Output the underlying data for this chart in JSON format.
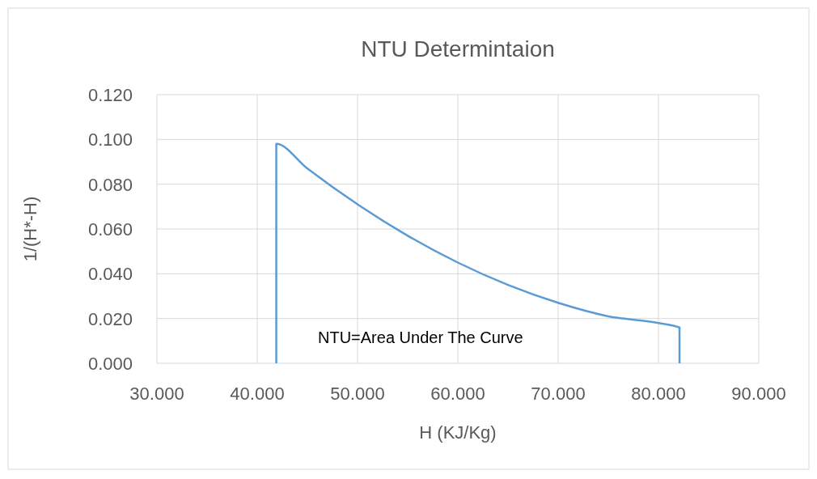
{
  "chart_data": {
    "type": "line",
    "title": "NTU Determintaion",
    "xlabel": "H (KJ/Kg)",
    "ylabel": "1/(H*-H)",
    "x": [
      41.9,
      41.9,
      45,
      50,
      55,
      60,
      65,
      70,
      75,
      80,
      82.1,
      82.1
    ],
    "series": [
      {
        "color": "#5b9bd5",
        "values": [
          0,
          0.098,
          0.087,
          0.071,
          0.057,
          0.045,
          0.035,
          0.027,
          0.021,
          0.018,
          0.016,
          0
        ]
      }
    ],
    "xlim": [
      30,
      90
    ],
    "xticks": [
      {
        "value": 30,
        "label": "30.000"
      },
      {
        "value": 40,
        "label": "40.000"
      },
      {
        "value": 50,
        "label": "50.000"
      },
      {
        "value": 60,
        "label": "60.000"
      },
      {
        "value": 70,
        "label": "70.000"
      },
      {
        "value": 80,
        "label": "80.000"
      },
      {
        "value": 90,
        "label": "90.000"
      }
    ],
    "ylim": [
      0,
      0.12
    ],
    "yticks": [
      {
        "value": 0,
        "label": "0.000"
      },
      {
        "value": 0.02,
        "label": "0.020"
      },
      {
        "value": 0.04,
        "label": "0.040"
      },
      {
        "value": 0.06,
        "label": "0.060"
      },
      {
        "value": 0.08,
        "label": "0.080"
      },
      {
        "value": 0.1,
        "label": "0.100"
      },
      {
        "value": 0.12,
        "label": "0.120"
      }
    ],
    "grid": true,
    "marker": "none",
    "line_style": "solid",
    "annotations": [
      "NTU=Area Under The Curve"
    ]
  }
}
